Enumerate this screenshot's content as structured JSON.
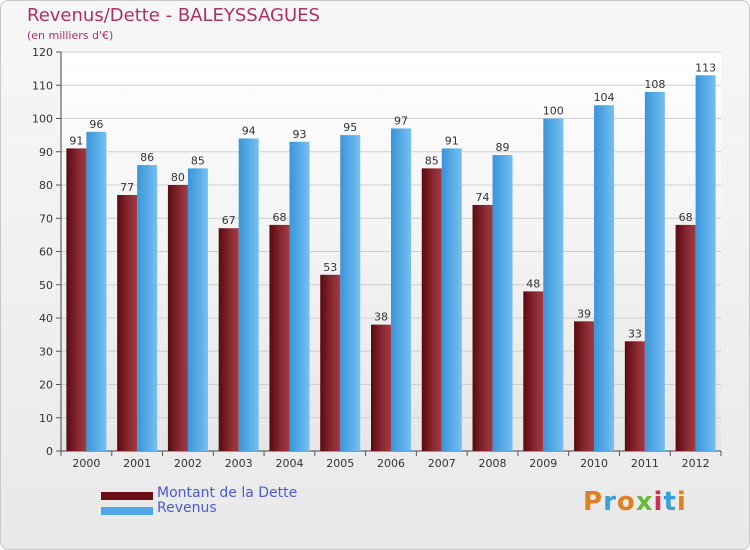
{
  "title": "Revenus/Dette - BALEYSSAGUES",
  "subtitle": "(en milliers d'€)",
  "colors": {
    "title": "#b03062",
    "debt": "#7a1f25",
    "debt_light": "#a83a44",
    "revenue": "#4ea6e6",
    "revenue_light": "#7cc2f2",
    "legend_text": "#4a5ad6"
  },
  "legend": [
    {
      "label": "Montant de la Dette",
      "color": "#6b0f14"
    },
    {
      "label": "Revenus",
      "color": "#4ea6e6"
    }
  ],
  "logo": {
    "text": "Proxiti",
    "letters": [
      "P",
      "r",
      "o",
      "x",
      "i",
      "t",
      "i"
    ],
    "letter_colors": [
      "#e08020",
      "#3aa0d8",
      "#e08020",
      "#6cb83a",
      "#d03050",
      "#3aa0d8",
      "#e08020"
    ]
  },
  "chart_data": {
    "type": "bar",
    "title": "Revenus/Dette - BALEYSSAGUES",
    "subtitle": "(en milliers d'€)",
    "categories": [
      "2000",
      "2001",
      "2002",
      "2003",
      "2004",
      "2005",
      "2006",
      "2007",
      "2008",
      "2009",
      "2010",
      "2011",
      "2012"
    ],
    "series": [
      {
        "name": "Montant de la Dette",
        "values": [
          91,
          77,
          80,
          67,
          68,
          53,
          38,
          85,
          74,
          48,
          39,
          33,
          68
        ]
      },
      {
        "name": "Revenus",
        "values": [
          96,
          86,
          85,
          94,
          93,
          95,
          97,
          91,
          89,
          100,
          104,
          108,
          113
        ]
      }
    ],
    "ylim": [
      0,
      120
    ],
    "yticks": [
      0,
      10,
      20,
      30,
      40,
      50,
      60,
      70,
      80,
      90,
      100,
      110,
      120
    ],
    "grid": true,
    "legend_position": "bottom-left"
  }
}
